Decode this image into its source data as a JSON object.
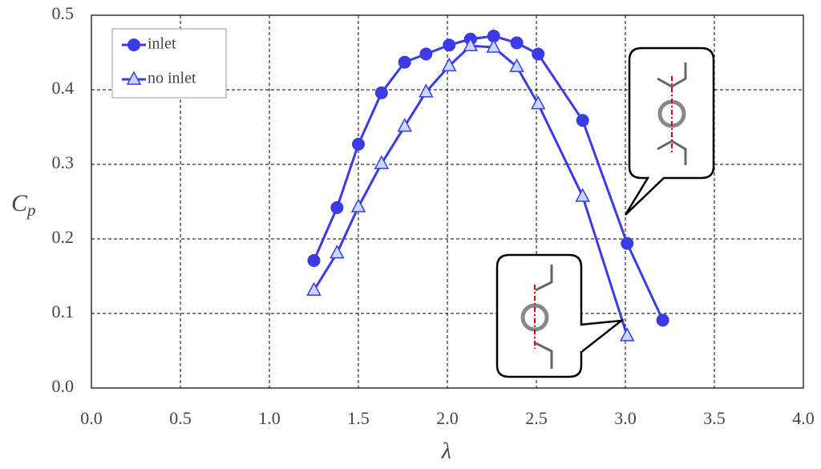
{
  "chart_data": {
    "type": "line",
    "x_label": "λ",
    "y_label": "C",
    "y_label_subscript": "p",
    "series": [
      {
        "name": "inlet",
        "color": "#3b3be6",
        "marker": "circle",
        "x": [
          1.25,
          1.38,
          1.5,
          1.63,
          1.76,
          1.88,
          2.01,
          2.13,
          2.26,
          2.39,
          2.51,
          2.76,
          3.01,
          3.21
        ],
        "values": [
          0.171,
          0.242,
          0.327,
          0.396,
          0.437,
          0.448,
          0.46,
          0.468,
          0.472,
          0.463,
          0.448,
          0.359,
          0.194,
          0.091
        ]
      },
      {
        "name": "no inlet",
        "color": "#3b3be6",
        "marker": "triangle",
        "x": [
          1.25,
          1.38,
          1.5,
          1.63,
          1.76,
          1.88,
          2.01,
          2.13,
          2.26,
          2.39,
          2.51,
          2.76,
          3.01
        ],
        "values": [
          0.131,
          0.181,
          0.243,
          0.301,
          0.351,
          0.397,
          0.432,
          0.459,
          0.457,
          0.431,
          0.381,
          0.257,
          0.07
        ]
      }
    ],
    "xlim": [
      0,
      4
    ],
    "ylim": [
      0,
      0.5
    ],
    "xticks": [
      {
        "value": 0,
        "label": "0.0"
      },
      0.5,
      {
        "value": 1,
        "label": "1.0"
      },
      1.5,
      {
        "value": 2,
        "label": "2.0"
      },
      2.5,
      {
        "value": 3,
        "label": "3.0"
      },
      3.5,
      {
        "value": 4,
        "label": "4.0"
      }
    ],
    "yticks": [
      {
        "value": 0,
        "label": "0.0"
      },
      0.1,
      0.2,
      0.3,
      0.4,
      0.5
    ],
    "grid": true,
    "legend": "upper-left"
  }
}
